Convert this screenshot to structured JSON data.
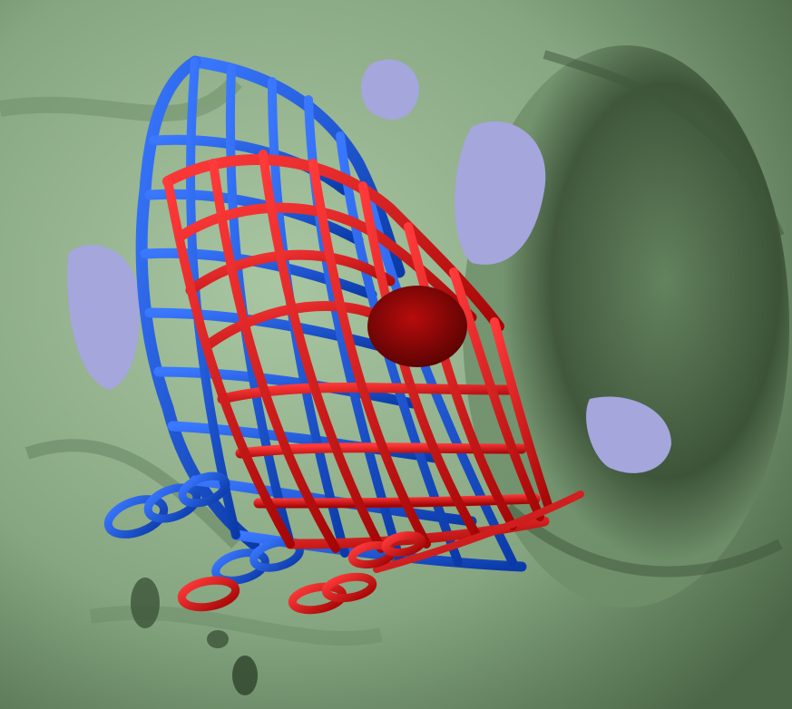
{
  "scene": {
    "colors": {
      "background": "#a4a6dc",
      "tissue": "#7fa07a",
      "tissue_dark": "#3f5a3c",
      "tissue_light": "#a9c6a2",
      "lattice_blue": "#1450d2",
      "lattice_red": "#d40d0d"
    },
    "objects": [
      "tissue-surface",
      "blue-lattice-mesh",
      "red-lattice-mesh",
      "blue-ring-chain",
      "red-ring-chain"
    ]
  }
}
